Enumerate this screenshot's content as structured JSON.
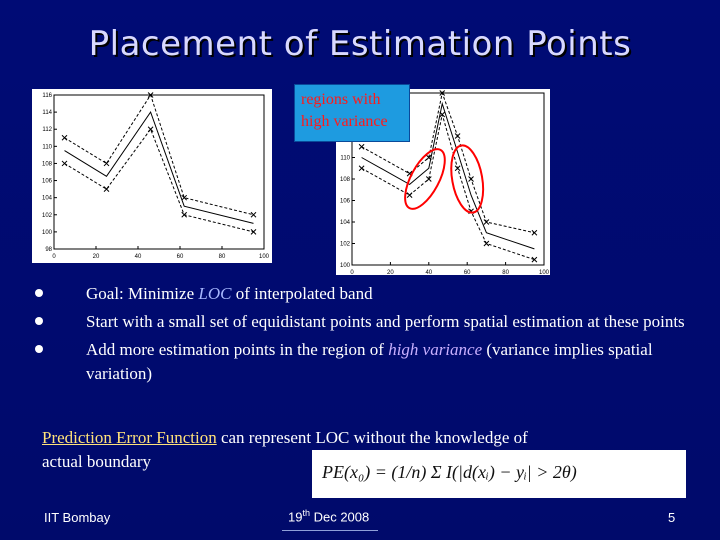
{
  "slide": {
    "title": "Placement of Estimation Points",
    "callout": [
      "regions with",
      "high variance"
    ],
    "bullets": [
      {
        "lead": "Goal",
        "sep": ": Minimize ",
        "em": "LOC",
        "rest": " of interpolated band"
      },
      {
        "text": "Start with a small set of equidistant points and perform spatial estimation at these points"
      },
      {
        "pre": "Add more estimation points in the region of ",
        "em": "high variance",
        "post": " (variance implies spatial variation)"
      }
    ],
    "pef": {
      "label": "Prediction Error Function",
      "rest": " can represent LOC without the knowledge of actual boundary"
    },
    "formula": "PE(x₀) = (1/n) Σ I(|d(xᵢ) − yᵢ| > 2θ)",
    "footer": {
      "left": "IIT Bombay",
      "center_day": "19",
      "center_sup": "th",
      "center_rest": " Dec  2008",
      "right": "5"
    },
    "colors": {
      "background": "#000a6e",
      "callout_fill": "#1e9be0",
      "callout_text": "#ff1a1a",
      "highlight_circle": "#ff0000",
      "pef_label": "#ffe27a"
    }
  },
  "chart_data": [
    {
      "type": "line",
      "x": [
        0,
        20,
        40,
        60,
        80,
        100
      ],
      "xticks": [
        0,
        20,
        40,
        60,
        80,
        100
      ],
      "yticks": [
        98,
        100,
        102,
        104,
        106,
        108,
        110,
        112,
        114,
        116
      ],
      "ylim": [
        98,
        116
      ],
      "series": [
        {
          "style": "dashed",
          "x": [
            5,
            25,
            46,
            62,
            95
          ],
          "values": [
            111,
            108,
            116,
            104,
            102
          ]
        },
        {
          "style": "solid",
          "x": [
            5,
            25,
            46,
            62,
            95
          ],
          "values": [
            109.5,
            106.5,
            114,
            103,
            101
          ]
        },
        {
          "style": "dashed",
          "x": [
            5,
            25,
            46,
            62,
            95
          ],
          "values": [
            108,
            105,
            112,
            102,
            100
          ]
        }
      ]
    },
    {
      "type": "line",
      "x": [
        0,
        10,
        20,
        30,
        40,
        50,
        60,
        70,
        80,
        90,
        100
      ],
      "xticks": [
        0,
        20,
        40,
        60,
        80,
        100
      ],
      "yticks": [
        100,
        102,
        104,
        106,
        108,
        110,
        112,
        114,
        116
      ],
      "ylim": [
        100,
        116
      ],
      "series": [
        {
          "style": "dashed",
          "x": [
            5,
            30,
            40,
            47,
            55,
            62,
            70,
            95
          ],
          "values": [
            111,
            108.5,
            110,
            116,
            112,
            108,
            104,
            103
          ]
        },
        {
          "style": "solid",
          "x": [
            5,
            30,
            40,
            47,
            55,
            62,
            70,
            95
          ],
          "values": [
            110,
            107.5,
            109,
            115,
            110.5,
            106.5,
            103,
            101.5
          ]
        },
        {
          "style": "dashed",
          "x": [
            5,
            30,
            40,
            47,
            55,
            62,
            70,
            95
          ],
          "values": [
            109,
            106.5,
            108,
            114,
            109,
            105,
            102,
            100.5
          ]
        }
      ],
      "annotations": [
        "highlight-circle-left",
        "highlight-circle-right"
      ]
    }
  ]
}
